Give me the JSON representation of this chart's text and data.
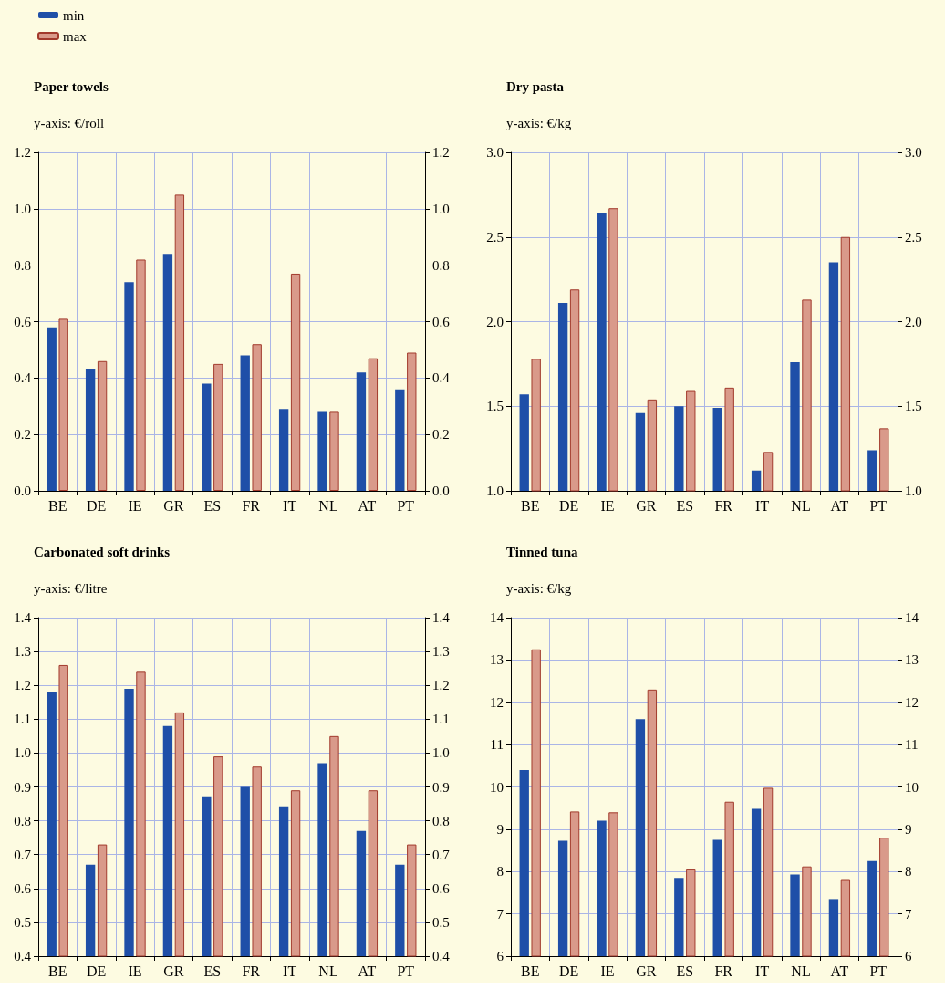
{
  "chart_data": [
    {
      "type": "bar",
      "title": "Paper towels",
      "subtitle": "y-axis: €/roll",
      "categories": [
        "BE",
        "DE",
        "IE",
        "GR",
        "ES",
        "FR",
        "IT",
        "NL",
        "AT",
        "PT"
      ],
      "legend": "top left",
      "grid": true,
      "series": [
        {
          "name": "min",
          "color": "#1f4fa8",
          "values": [
            0.58,
            0.43,
            0.74,
            0.84,
            0.38,
            0.48,
            0.29,
            0.28,
            0.42,
            0.36
          ]
        },
        {
          "name": "max",
          "color": "#d99a8a",
          "values": [
            0.61,
            0.46,
            0.82,
            1.05,
            0.45,
            0.52,
            0.77,
            0.28,
            0.47,
            0.49
          ]
        }
      ],
      "ylim": [
        0,
        1.2
      ],
      "yticks": [
        {
          "value": 0,
          "label": "0.0"
        },
        {
          "value": 0.2,
          "label": "0.2"
        },
        {
          "value": 0.4,
          "label": "0.4"
        },
        {
          "value": 0.6,
          "label": "0.6"
        },
        {
          "value": 0.8,
          "label": "0.8"
        },
        {
          "value": 1,
          "label": "1.0"
        },
        {
          "value": 1.2,
          "label": "1.2"
        }
      ],
      "y2lim": [
        0,
        1.2
      ],
      "y2ticks": [
        {
          "value": 0,
          "label": "0.0"
        },
        {
          "value": 0.2,
          "label": "0.2"
        },
        {
          "value": 0.4,
          "label": "0.4"
        },
        {
          "value": 0.6,
          "label": "0.6"
        },
        {
          "value": 0.8,
          "label": "0.8"
        },
        {
          "value": 1,
          "label": "1.0"
        },
        {
          "value": 1.2,
          "label": "1.2"
        }
      ]
    },
    {
      "type": "bar",
      "title": "Dry pasta",
      "subtitle": "y-axis: €/kg",
      "categories": [
        "BE",
        "DE",
        "IE",
        "GR",
        "ES",
        "FR",
        "IT",
        "NL",
        "AT",
        "PT"
      ],
      "grid": true,
      "series": [
        {
          "color": "#1f4fa8",
          "values": [
            1.57,
            2.11,
            2.64,
            1.46,
            1.5,
            1.49,
            1.12,
            1.76,
            2.35,
            1.24
          ]
        },
        {
          "color": "#d99a8a",
          "values": [
            1.78,
            2.19,
            2.67,
            1.54,
            1.59,
            1.61,
            1.23,
            2.13,
            2.5,
            1.37
          ]
        }
      ],
      "ylim": [
        1,
        3
      ],
      "yticks": [
        {
          "value": 1,
          "label": "1.0"
        },
        {
          "value": 1.5,
          "label": "1.5"
        },
        {
          "value": 2,
          "label": "2.0"
        },
        {
          "value": 2.5,
          "label": "2.5"
        },
        {
          "value": 3,
          "label": "3.0"
        }
      ],
      "y2lim": [
        1,
        3
      ],
      "y2ticks": [
        {
          "value": 1,
          "label": "1.0"
        },
        {
          "value": 1.5,
          "label": "1.5"
        },
        {
          "value": 2,
          "label": "2.0"
        },
        {
          "value": 2.5,
          "label": "2.5"
        },
        {
          "value": 3,
          "label": "3.0"
        }
      ]
    },
    {
      "type": "bar",
      "title": "Carbonated soft drinks",
      "subtitle": "y-axis: €/litre",
      "categories": [
        "BE",
        "DE",
        "IE",
        "GR",
        "ES",
        "FR",
        "IT",
        "NL",
        "AT",
        "PT"
      ],
      "grid": true,
      "series": [
        {
          "color": "#1f4fa8",
          "values": [
            1.18,
            0.67,
            1.19,
            1.08,
            0.87,
            0.9,
            0.84,
            0.97,
            0.77,
            0.67
          ]
        },
        {
          "color": "#d99a8a",
          "values": [
            1.26,
            0.73,
            1.24,
            1.12,
            0.99,
            0.96,
            0.89,
            1.05,
            0.89,
            0.73
          ]
        }
      ],
      "ylim": [
        0.4,
        1.4
      ],
      "yticks": [
        {
          "value": 0.4,
          "label": "0.4"
        },
        {
          "value": 0.5,
          "label": "0.5"
        },
        {
          "value": 0.6,
          "label": "0.6"
        },
        {
          "value": 0.7,
          "label": "0.7"
        },
        {
          "value": 0.8,
          "label": "0.8"
        },
        {
          "value": 0.9,
          "label": "0.9"
        },
        {
          "value": 1,
          "label": "1.0"
        },
        {
          "value": 1.1,
          "label": "1.1"
        },
        {
          "value": 1.2,
          "label": "1.2"
        },
        {
          "value": 1.3,
          "label": "1.3"
        },
        {
          "value": 1.4,
          "label": "1.4"
        }
      ],
      "y2lim": [
        0.4,
        1.4
      ],
      "y2ticks": [
        {
          "value": 0.4,
          "label": "0.4"
        },
        {
          "value": 0.5,
          "label": "0.5"
        },
        {
          "value": 0.6,
          "label": "0.6"
        },
        {
          "value": 0.7,
          "label": "0.7"
        },
        {
          "value": 0.8,
          "label": "0.8"
        },
        {
          "value": 0.9,
          "label": "0.9"
        },
        {
          "value": 1,
          "label": "1.0"
        },
        {
          "value": 1.1,
          "label": "1.1"
        },
        {
          "value": 1.2,
          "label": "1.2"
        },
        {
          "value": 1.3,
          "label": "1.3"
        },
        {
          "value": 1.4,
          "label": "1.4"
        }
      ]
    },
    {
      "type": "bar",
      "title": "Tinned tuna",
      "subtitle": "y-axis: €/kg",
      "categories": [
        "BE",
        "DE",
        "IE",
        "GR",
        "ES",
        "FR",
        "IT",
        "NL",
        "AT",
        "PT"
      ],
      "grid": true,
      "series": [
        {
          "color": "#1f4fa8",
          "values": [
            10.4,
            8.73,
            9.2,
            11.6,
            7.85,
            8.75,
            9.48,
            7.93,
            7.35,
            8.25
          ]
        },
        {
          "color": "#d99a8a",
          "values": [
            13.25,
            9.42,
            9.4,
            12.3,
            8.05,
            9.65,
            9.98,
            8.12,
            7.8,
            8.8
          ]
        }
      ],
      "ylim": [
        6,
        14
      ],
      "yticks": [
        6,
        7,
        8,
        9,
        10,
        11,
        12,
        13,
        14
      ],
      "y2lim": [
        6,
        14
      ],
      "y2ticks": [
        6,
        7,
        8,
        9,
        10,
        11,
        12,
        13,
        14
      ]
    }
  ]
}
